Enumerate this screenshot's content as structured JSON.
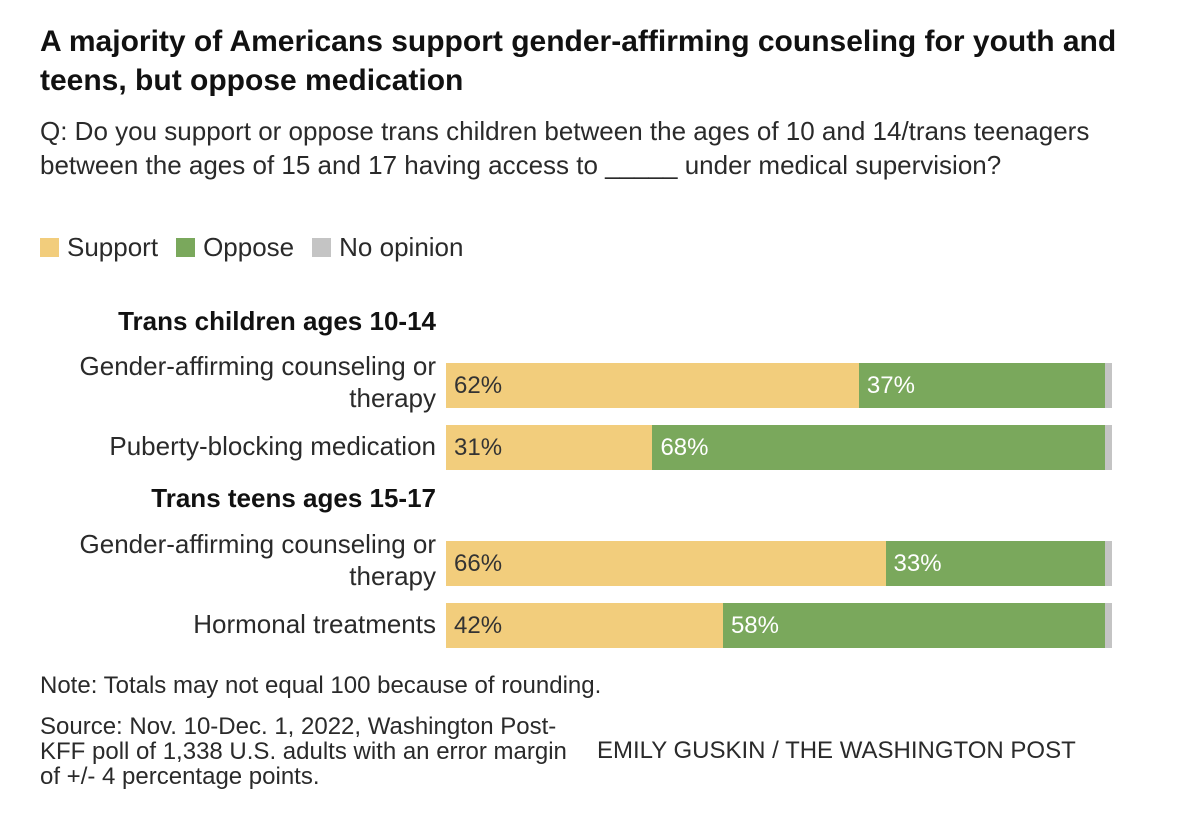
{
  "title": "A majority of Americans support gender-affirming counseling for youth and teens, but oppose medication",
  "question": "Q: Do you support or oppose trans children between the ages of 10 and 14/trans teenagers between the ages of 15 and 17 having access to _____ under medical supervision?",
  "note": "Note: Totals may not equal 100 because of rounding.",
  "source": "Source: Nov. 10-Dec. 1, 2022, Washington Post-KFF poll of 1,338 U.S. adults with an error margin of +/- 4 percentage points.",
  "credit": "EMILY GUSKIN / THE WASHINGTON POST",
  "colors": {
    "support": "#f2cd7c",
    "oppose": "#7aa85c",
    "no_opinion": "#c4c4c4"
  },
  "chart_data": {
    "type": "bar",
    "orientation": "horizontal",
    "stacked": true,
    "title": "A majority of Americans support gender-affirming counseling for youth and teens, but oppose medication",
    "legend": [
      "Support",
      "Oppose",
      "No opinion"
    ],
    "legend_position": "top-left",
    "xlim": [
      0,
      100
    ],
    "groups": [
      {
        "label": "Trans children ages 10-14",
        "rows": [
          {
            "category": "Gender-affirming counseling or therapy",
            "support": 62,
            "oppose": 37,
            "no_opinion": 1
          },
          {
            "category": "Puberty-blocking medication",
            "support": 31,
            "oppose": 68,
            "no_opinion": 1
          }
        ]
      },
      {
        "label": "Trans teens ages 15-17",
        "rows": [
          {
            "category": "Gender-affirming counseling or therapy",
            "support": 66,
            "oppose": 33,
            "no_opinion": 1
          },
          {
            "category": "Hormonal treatments",
            "support": 42,
            "oppose": 58,
            "no_opinion": 1
          }
        ]
      }
    ]
  }
}
